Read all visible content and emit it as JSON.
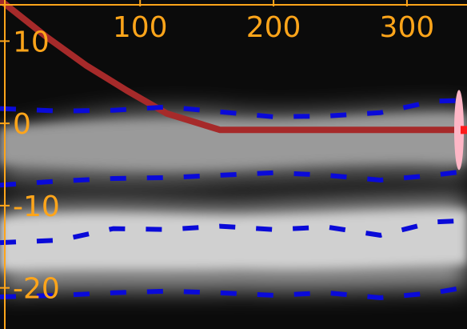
{
  "chart_data": {
    "type": "line",
    "title": "",
    "xlabel": "",
    "ylabel": "",
    "xlim": [
      -5,
      345
    ],
    "ylim": [
      -25,
      15
    ],
    "x_ticks": [
      100,
      200,
      300
    ],
    "y_ticks": [
      10,
      0,
      -10,
      -20
    ],
    "x_tick_labels": [
      "100",
      "200",
      "300"
    ],
    "y_tick_labels": [
      "10",
      "0",
      "-10",
      "-20"
    ],
    "background": "grayscale density bands around 0 and -17",
    "series": [
      {
        "kind": "solid",
        "color": "#a62a2a",
        "x": [
          -5,
          30,
          60,
          90,
          120,
          160,
          200,
          240,
          280,
          320,
          345
        ],
        "y": [
          15,
          10.5,
          7,
          4,
          1.2,
          -0.8,
          -0.8,
          -0.8,
          -0.8,
          -0.8,
          -0.8
        ]
      },
      {
        "kind": "dashed",
        "color": "#0a0ad8",
        "x": [
          -5,
          40,
          80,
          120,
          160,
          200,
          240,
          280,
          320,
          345
        ],
        "y": [
          1.8,
          1.5,
          1.6,
          2.0,
          1.4,
          0.8,
          0.9,
          1.3,
          2.7,
          2.8
        ]
      },
      {
        "kind": "dashed",
        "color": "#0a0ad8",
        "x": [
          -5,
          40,
          80,
          120,
          160,
          200,
          240,
          280,
          320,
          345
        ],
        "y": [
          -7.5,
          -7.0,
          -6.7,
          -6.6,
          -6.3,
          -6.0,
          -6.3,
          -6.9,
          -6.3,
          -5.8
        ]
      },
      {
        "kind": "dashed",
        "color": "#0a0ad8",
        "x": [
          -5,
          40,
          80,
          120,
          160,
          200,
          240,
          280,
          320,
          345
        ],
        "y": [
          -14.5,
          -14.2,
          -12.8,
          -12.9,
          -12.5,
          -12.9,
          -12.6,
          -13.6,
          -12.0,
          -11.8
        ]
      },
      {
        "kind": "dashed",
        "color": "#0a0ad8",
        "x": [
          -5,
          40,
          80,
          120,
          160,
          200,
          240,
          280,
          320,
          345
        ],
        "y": [
          -21.1,
          -20.9,
          -20.6,
          -20.4,
          -20.6,
          -20.9,
          -20.6,
          -21.2,
          -20.6,
          -19.9
        ]
      }
    ],
    "marker": {
      "x": 339,
      "y": -0.8,
      "color": "#ffb6c6"
    },
    "colors": {
      "axis": "#ffa51a",
      "background": "#000000",
      "marker_tip": "#ff1a1a"
    }
  }
}
